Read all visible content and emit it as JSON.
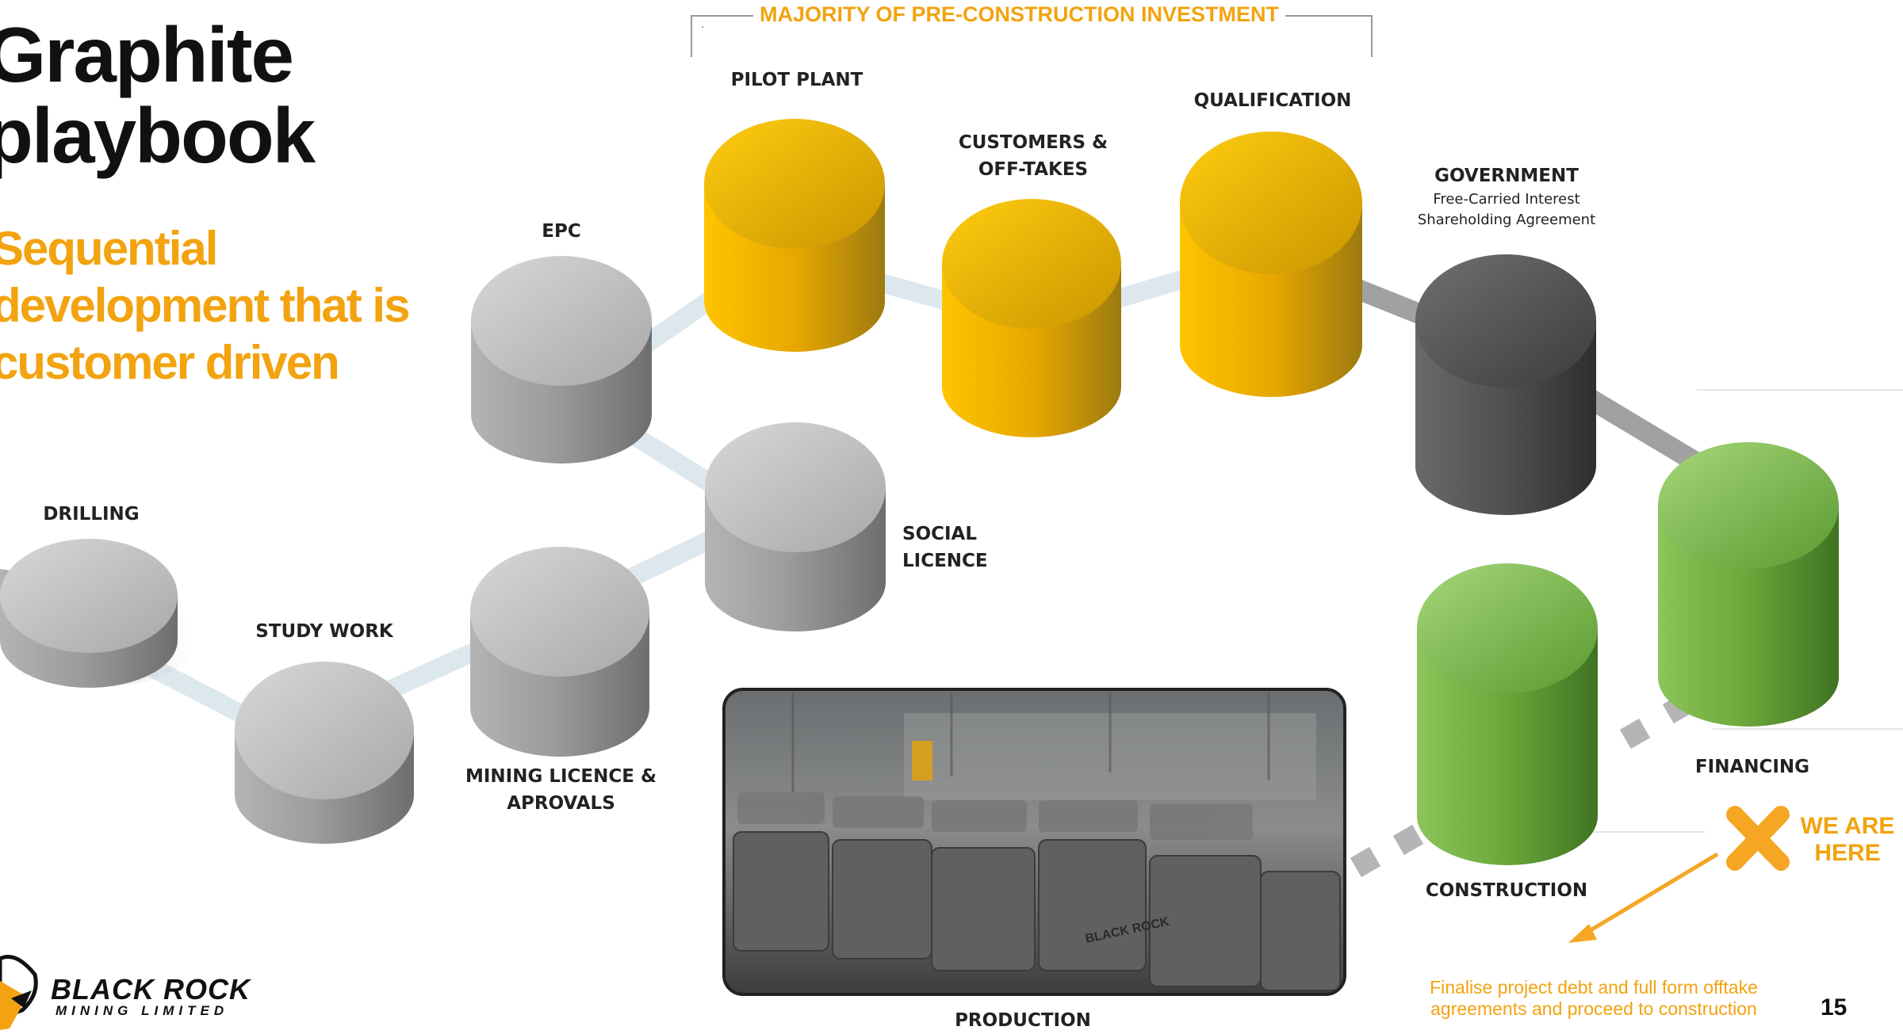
{
  "header": {
    "title_line1": "Graphite",
    "title_line2": "playbook",
    "subtitle_line1": "Sequential",
    "subtitle_line2": "development that is",
    "subtitle_line3": "customer driven"
  },
  "bracket": {
    "label": "MAJORITY OF PRE-CONSTRUCTION INVESTMENT",
    "mark": "."
  },
  "stages": {
    "drilling": "DRILLING",
    "study_work": "STUDY WORK",
    "mining_licence_1": "MINING LICENCE &",
    "mining_licence_2": "APROVALS",
    "epc": "EPC",
    "social_1": "SOCIAL",
    "social_2": "LICENCE",
    "pilot_plant": "PILOT PLANT",
    "customers_1": "CUSTOMERS &",
    "customers_2": "OFF-TAKES",
    "qualification": "QUALIFICATION",
    "government": "GOVERNMENT",
    "government_sub1": "Free-Carried Interest",
    "government_sub2": "Shareholding Agreement",
    "financing": "FINANCING",
    "construction": "CONSTRUCTION",
    "production": "PRODUCTION"
  },
  "marker": {
    "we_are_1": "WE ARE",
    "we_are_2": "HERE",
    "note_1": "Finalise project debt and full form offtake",
    "note_2": "agreements and proceed to construction"
  },
  "photo_bag_text": "BLACK ROCK",
  "footer": {
    "page_number": "15",
    "brand_name": "BLACK ROCK",
    "brand_sub": "MINING LIMITED"
  },
  "colors": {
    "accent": "#f2a30f",
    "grey_stage": "#9a9a9a",
    "yellow_stage": "#f5b800",
    "dark_stage": "#4d4d4d",
    "green_stage": "#6aaa3c"
  }
}
